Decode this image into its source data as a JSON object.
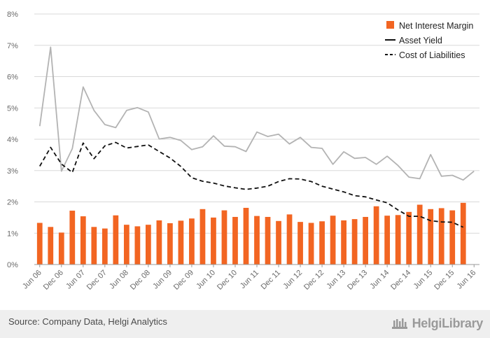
{
  "chart_data": {
    "type": "bar",
    "categories": [
      "Jun 06",
      "Sep 06",
      "Dec 06",
      "Mar 07",
      "Jun 07",
      "Sep 07",
      "Dec 07",
      "Mar 08",
      "Jun 08",
      "Sep 08",
      "Dec 08",
      "Mar 09",
      "Jun 09",
      "Sep 09",
      "Dec 09",
      "Mar 10",
      "Jun 10",
      "Sep 10",
      "Dec 10",
      "Mar 11",
      "Jun 11",
      "Sep 11",
      "Dec 11",
      "Mar 12",
      "Jun 12",
      "Sep 12",
      "Dec 12",
      "Mar 13",
      "Jun 13",
      "Sep 13",
      "Dec 13",
      "Mar 14",
      "Jun 14",
      "Sep 14",
      "Dec 14",
      "Mar 15",
      "Jun 15",
      "Sep 15",
      "Dec 15",
      "Mar 16",
      "Jun 16"
    ],
    "x_tick_labels": [
      "Jun 06",
      "Dec 06",
      "Jun 07",
      "Dec 07",
      "Jun 08",
      "Dec 08",
      "Jun 09",
      "Dec 09",
      "Jun 10",
      "Dec 10",
      "Jun 11",
      "Dec 11",
      "Jun 12",
      "Dec 12",
      "Jun 13",
      "Dec 13",
      "Jun 14",
      "Dec 14",
      "Jun 15",
      "Dec 15",
      "Jun 16"
    ],
    "y_tick_labels": [
      "0%",
      "1%",
      "2%",
      "3%",
      "4%",
      "5%",
      "6%",
      "7%",
      "8%"
    ],
    "ylim": [
      0,
      8
    ],
    "grid": true,
    "legend_position": "top-right",
    "series": [
      {
        "name": "Net Interest Margin",
        "type": "bar",
        "color": "#f26522",
        "values": [
          1.33,
          1.2,
          1.02,
          1.72,
          1.54,
          1.2,
          1.15,
          1.57,
          1.27,
          1.22,
          1.27,
          1.41,
          1.32,
          1.4,
          1.47,
          1.77,
          1.5,
          1.73,
          1.52,
          1.81,
          1.55,
          1.52,
          1.39,
          1.6,
          1.36,
          1.33,
          1.38,
          1.56,
          1.41,
          1.45,
          1.52,
          1.86,
          1.56,
          1.58,
          1.68,
          1.91,
          1.77,
          1.8,
          1.73,
          1.97,
          null
        ]
      },
      {
        "name": "Asset Yield",
        "type": "line",
        "color": "#b3b3b3",
        "values": [
          4.42,
          6.94,
          2.98,
          3.7,
          5.67,
          4.92,
          4.47,
          4.37,
          4.92,
          5.01,
          4.87,
          4.01,
          4.06,
          3.96,
          3.67,
          3.76,
          4.11,
          3.78,
          3.76,
          3.61,
          4.23,
          4.09,
          4.16,
          3.85,
          4.06,
          3.74,
          3.71,
          3.2,
          3.6,
          3.39,
          3.42,
          3.2,
          3.46,
          3.16,
          2.79,
          2.74,
          3.51,
          2.82,
          2.85,
          2.7,
          2.98
        ]
      },
      {
        "name": "Cost of Liabilities",
        "type": "line",
        "dashed": true,
        "color": "#111111",
        "values": [
          3.14,
          3.74,
          3.21,
          2.94,
          3.88,
          3.38,
          3.79,
          3.9,
          3.72,
          3.77,
          3.82,
          3.61,
          3.4,
          3.13,
          2.77,
          2.66,
          2.6,
          2.51,
          2.45,
          2.4,
          2.44,
          2.5,
          2.65,
          2.74,
          2.73,
          2.65,
          2.5,
          2.41,
          2.32,
          2.2,
          2.16,
          2.06,
          1.97,
          1.74,
          1.54,
          1.54,
          1.4,
          1.36,
          1.35,
          1.19,
          null
        ]
      }
    ]
  },
  "footer": {
    "source": "Source: Company Data, Helgi Analytics",
    "brand": "HelgiLibrary"
  },
  "colors": {
    "grid": "#d9d9d9",
    "axis": "#9a9a9a",
    "footer_bg": "#efefef"
  }
}
